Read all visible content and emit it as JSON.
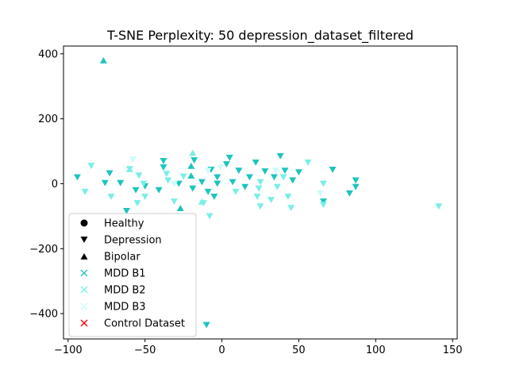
{
  "chart_data": {
    "type": "scatter",
    "title": "T-SNE Perplexity: 50 depression_dataset_filtered",
    "xlabel": "",
    "ylabel": "",
    "xlim": [
      -103,
      153
    ],
    "ylim": [
      -478,
      424
    ],
    "xticks": [
      -100,
      -50,
      0,
      50,
      100,
      150
    ],
    "xtick_labels": [
      "−100",
      "−50",
      "0",
      "50",
      "100",
      "150"
    ],
    "yticks": [
      400,
      200,
      0,
      -200,
      -400
    ],
    "ytick_labels": [
      "400",
      "200",
      "0",
      "−200",
      "−400"
    ],
    "grid": false,
    "legend_position": "lower-left",
    "legend": [
      {
        "label": "Healthy",
        "marker": "circle",
        "color": "#000000"
      },
      {
        "label": "Depression",
        "marker": "triangle-down",
        "color": "#000000"
      },
      {
        "label": "Bipolar",
        "marker": "triangle-up",
        "color": "#000000"
      },
      {
        "label": "MDD B1",
        "marker": "x",
        "color": "#1cc5bd"
      },
      {
        "label": "MDD B2",
        "marker": "x",
        "color": "#7aeee6"
      },
      {
        "label": "MDD B3",
        "marker": "x",
        "color": "#cdfbf8"
      },
      {
        "label": "Control Dataset",
        "marker": "x",
        "color": "#ff0000"
      }
    ],
    "series": [
      {
        "marker": "triangle-down",
        "color": "#1cc5bd",
        "points": [
          [
            -94,
            20
          ],
          [
            -73,
            32
          ],
          [
            -76,
            2
          ],
          [
            -66,
            2
          ],
          [
            -62,
            -84
          ],
          [
            -56,
            -20
          ],
          [
            -50,
            -8
          ],
          [
            -41,
            -20
          ],
          [
            -38,
            70
          ],
          [
            -38,
            50
          ],
          [
            -28,
            0
          ],
          [
            -19,
            -15
          ],
          [
            -18,
            72
          ],
          [
            -13,
            5
          ],
          [
            -9,
            -25
          ],
          [
            -7,
            43
          ],
          [
            -5,
            -40
          ],
          [
            -3,
            20
          ],
          [
            -3,
            0
          ],
          [
            3,
            60
          ],
          [
            5,
            80
          ],
          [
            7,
            5
          ],
          [
            11,
            40
          ],
          [
            15,
            -10
          ],
          [
            18,
            20
          ],
          [
            22,
            65
          ],
          [
            28,
            38
          ],
          [
            34,
            20
          ],
          [
            38,
            85
          ],
          [
            41,
            40
          ],
          [
            46,
            10
          ],
          [
            50,
            35
          ],
          [
            66,
            -55
          ],
          [
            72,
            43
          ],
          [
            83,
            -30
          ],
          [
            87,
            10
          ],
          [
            87,
            -10
          ],
          [
            -10,
            -435
          ]
        ]
      },
      {
        "marker": "triangle-down",
        "color": "#7aeee6",
        "points": [
          [
            -89,
            -25
          ],
          [
            -85,
            55
          ],
          [
            -72,
            -40
          ],
          [
            -60,
            45
          ],
          [
            -54,
            25
          ],
          [
            -51,
            0
          ],
          [
            -50,
            -40
          ],
          [
            -55,
            -60
          ],
          [
            -36,
            30
          ],
          [
            -35,
            10
          ],
          [
            -31,
            -55
          ],
          [
            -25,
            22
          ],
          [
            -12,
            -60
          ],
          [
            -8,
            -100
          ],
          [
            9,
            -25
          ],
          [
            23,
            -40
          ],
          [
            24,
            -15
          ],
          [
            25,
            5
          ],
          [
            25,
            -70
          ],
          [
            32,
            -50
          ],
          [
            36,
            -10
          ],
          [
            40,
            20
          ],
          [
            43,
            -40
          ],
          [
            45,
            -75
          ],
          [
            56,
            65
          ],
          [
            66,
            0
          ],
          [
            66,
            -65
          ],
          [
            141,
            -70
          ]
        ]
      },
      {
        "marker": "triangle-down",
        "color": "#cdfbf8",
        "points": [
          [
            -58,
            75
          ],
          [
            -31,
            0
          ],
          [
            -9,
            40
          ],
          [
            -1,
            50
          ],
          [
            35,
            40
          ],
          [
            64,
            -30
          ]
        ]
      },
      {
        "marker": "triangle-up",
        "color": "#1cc5bd",
        "points": [
          [
            -77,
            380
          ],
          [
            -27,
            -75
          ],
          [
            -20,
            55
          ],
          [
            -20,
            25
          ]
        ]
      },
      {
        "marker": "triangle-up",
        "color": "#7aeee6",
        "points": [
          [
            -60,
            45
          ],
          [
            -19,
            95
          ],
          [
            -13,
            -55
          ]
        ]
      }
    ]
  }
}
